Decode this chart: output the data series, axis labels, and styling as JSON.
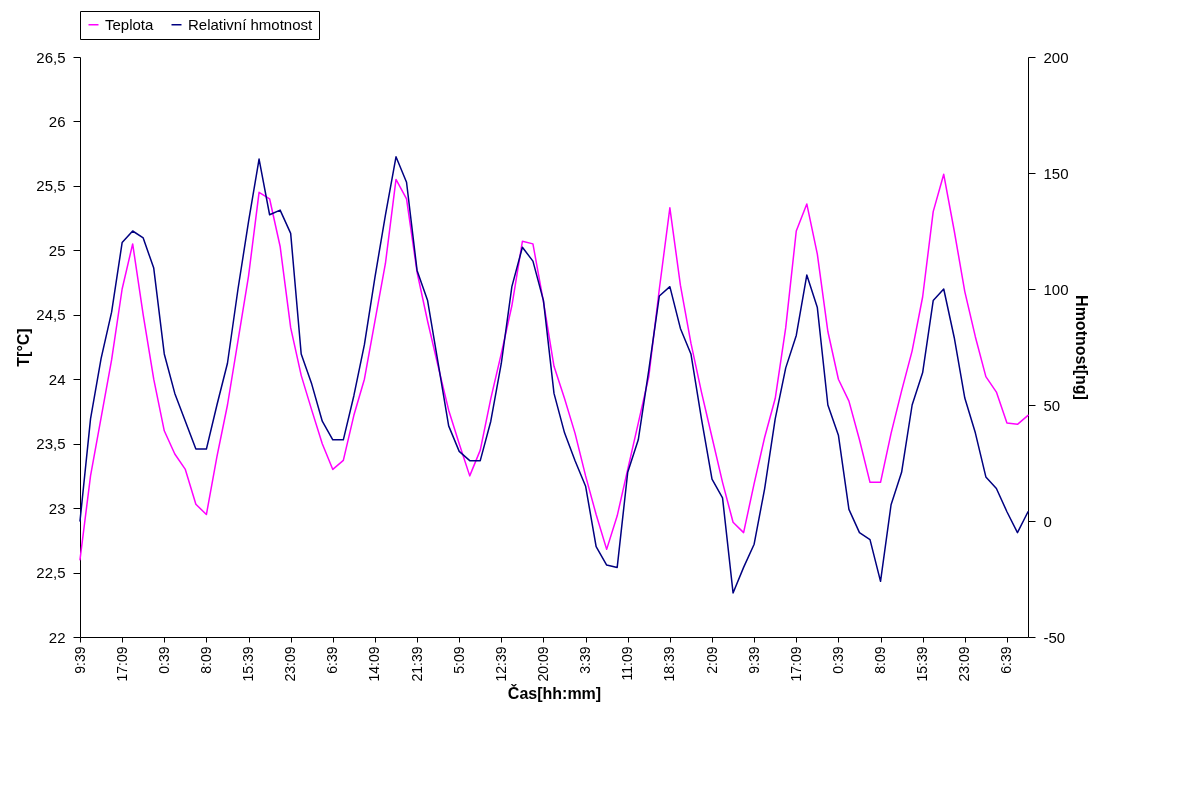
{
  "chart_data": {
    "type": "line",
    "xlabel": "Čas[hh:mm]",
    "ylabel": "T[°C]",
    "y2label": "Hmotnost[ng]",
    "legend": "top",
    "categories": [
      "9:39",
      null,
      null,
      null,
      "17:09",
      null,
      null,
      null,
      "0:39",
      null,
      null,
      null,
      "8:09",
      null,
      null,
      null,
      "15:39",
      null,
      null,
      null,
      "23:09",
      null,
      null,
      null,
      "6:39",
      null,
      null,
      null,
      "14:09",
      null,
      null,
      null,
      "21:39",
      null,
      null,
      null,
      "5:09",
      null,
      null,
      null,
      "12:39",
      null,
      null,
      null,
      "20:09",
      null,
      null,
      null,
      "3:39",
      null,
      null,
      null,
      "11:09",
      null,
      null,
      null,
      "18:39",
      null,
      null,
      null,
      "2:09",
      null,
      null,
      null,
      "9:39",
      null,
      null,
      null,
      "17:09",
      null,
      null,
      null,
      "0:39",
      null,
      null,
      null,
      "8:09",
      null,
      null,
      null,
      "15:39",
      null,
      null,
      null,
      "23:09",
      null,
      null,
      null,
      "6:39",
      null,
      null
    ],
    "ylim": [
      22,
      26.5
    ],
    "yticks": [
      22,
      {
        "value": 22.5,
        "label": "22,5"
      },
      23,
      {
        "value": 23.5,
        "label": "23,5"
      },
      24,
      {
        "value": 24.5,
        "label": "24,5"
      },
      25,
      {
        "value": 25.5,
        "label": "25,5"
      },
      26,
      {
        "value": 26.5,
        "label": "26,5"
      }
    ],
    "y2lim": [
      -50,
      200
    ],
    "y2ticks": [
      -50,
      0,
      50,
      100,
      150,
      200
    ],
    "series": [
      {
        "name": "Teplota",
        "color": "#ff00ff",
        "values": [
          22.6,
          23.25,
          23.7,
          24.15,
          24.7,
          25.05,
          24.5,
          24.0,
          23.6,
          23.42,
          23.3,
          23.03,
          22.95,
          23.4,
          23.8,
          24.3,
          24.8,
          25.45,
          25.4,
          25.03,
          24.4,
          24.03,
          23.76,
          23.5,
          23.3,
          23.37,
          23.72,
          24.0,
          24.45,
          24.9,
          25.55,
          25.4,
          24.83,
          24.45,
          24.1,
          23.76,
          23.5,
          23.25,
          23.45,
          23.85,
          24.2,
          24.57,
          25.07,
          25.05,
          24.6,
          24.1,
          23.85,
          23.58,
          23.25,
          22.95,
          22.68,
          22.94,
          23.3,
          23.66,
          24.02,
          24.7,
          25.33,
          24.73,
          24.28,
          23.9,
          23.55,
          23.2,
          22.89,
          22.81,
          23.19,
          23.55,
          23.85,
          24.4,
          25.15,
          25.36,
          24.97,
          24.37,
          24.0,
          23.83,
          23.53,
          23.2,
          23.2,
          23.58,
          23.91,
          24.22,
          24.64,
          25.3,
          25.59,
          25.15,
          24.68,
          24.33,
          24.02,
          23.9,
          23.66,
          23.65,
          23.72
        ]
      },
      {
        "name": "Relativní hmotnost",
        "color": "#000080",
        "axis": "y2",
        "values": [
          0,
          44,
          70,
          90,
          120,
          125,
          122,
          109,
          72,
          55,
          43,
          31,
          31,
          50,
          68,
          100,
          129,
          156,
          132,
          134,
          124,
          72,
          59,
          43,
          35,
          35,
          54,
          76,
          105,
          132,
          157,
          146,
          108,
          95,
          68,
          41,
          30,
          26,
          26,
          43,
          68,
          101,
          118,
          112,
          95,
          55,
          38,
          26,
          15,
          -11,
          -19,
          -20,
          21,
          35,
          65,
          97,
          101,
          83,
          72,
          44,
          18,
          10,
          -31,
          -20,
          -10,
          14,
          44,
          66,
          80,
          106,
          92,
          50,
          37,
          5,
          -5,
          -8,
          -26,
          7,
          21,
          50,
          64,
          95,
          100,
          79,
          53,
          38,
          19,
          14,
          4,
          -5,
          4
        ]
      }
    ]
  }
}
